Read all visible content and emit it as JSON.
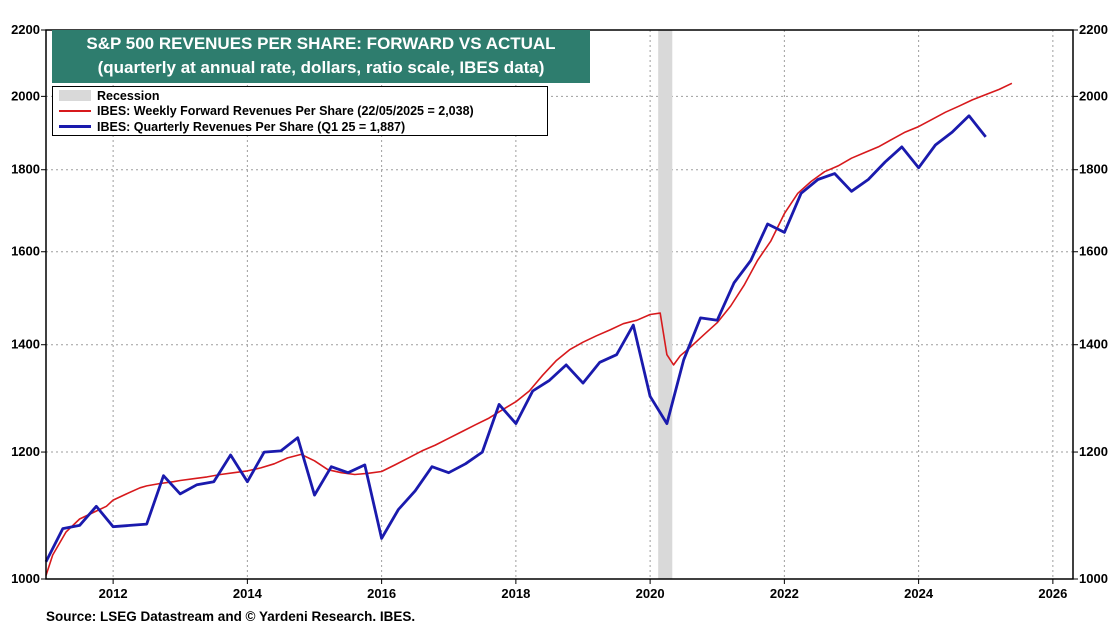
{
  "title": {
    "line1": "S&P 500 REVENUES PER SHARE: FORWARD VS ACTUAL",
    "line2": "(quarterly at annual rate, dollars, ratio scale, IBES data)"
  },
  "source": "Source: LSEG Datastream and © Yardeni Research. IBES.",
  "legend": {
    "recession": "Recession",
    "forward": "IBES: Weekly Forward Revenues Per Share (22/05/2025 = 2,038)",
    "actual": "IBES: Quarterly Revenues Per Share (Q1 25 = 1,887)"
  },
  "colors": {
    "forward": "#d7191c",
    "actual": "#1a1aad",
    "recession": "#d9d9d9",
    "title_bg": "#2e7d6e",
    "grid": "#9e9e9e"
  },
  "chart_data": {
    "type": "line",
    "title": "S&P 500 REVENUES PER SHARE: FORWARD VS ACTUAL",
    "subtitle": "(quarterly at annual rate, dollars, ratio scale, IBES data)",
    "y_scale": "log",
    "ylim": [
      1000,
      2200
    ],
    "xlim": [
      2011.0,
      2026.3
    ],
    "y_ticks": [
      1000,
      1200,
      1400,
      1600,
      1800,
      2000,
      2200
    ],
    "x_ticks": [
      2012,
      2014,
      2016,
      2018,
      2020,
      2022,
      2024,
      2026
    ],
    "grid": true,
    "legend_position": "top-left",
    "recession": [
      2020.12,
      2020.33
    ],
    "series": [
      {
        "name": "IBES: Weekly Forward Revenues Per Share (22/05/2025 = 2,038)",
        "x": [
          2011.0,
          2011.1,
          2011.3,
          2011.5,
          2011.7,
          2011.9,
          2012.0,
          2012.2,
          2012.4,
          2012.5,
          2012.7,
          2012.9,
          2013.0,
          2013.2,
          2013.4,
          2013.6,
          2013.8,
          2014.0,
          2014.2,
          2014.4,
          2014.6,
          2014.8,
          2015.0,
          2015.2,
          2015.4,
          2015.6,
          2015.8,
          2016.0,
          2016.2,
          2016.4,
          2016.6,
          2016.8,
          2017.0,
          2017.2,
          2017.4,
          2017.6,
          2017.8,
          2018.0,
          2018.2,
          2018.4,
          2018.6,
          2018.8,
          2019.0,
          2019.2,
          2019.4,
          2019.6,
          2019.8,
          2020.0,
          2020.15,
          2020.25,
          2020.35,
          2020.45,
          2020.6,
          2020.8,
          2021.0,
          2021.2,
          2021.4,
          2021.6,
          2021.8,
          2022.0,
          2022.2,
          2022.4,
          2022.6,
          2022.8,
          2023.0,
          2023.2,
          2023.4,
          2023.6,
          2023.8,
          2024.0,
          2024.2,
          2024.4,
          2024.6,
          2024.8,
          2025.0,
          2025.2,
          2025.39
        ],
        "values": [
          1005,
          1035,
          1070,
          1090,
          1100,
          1110,
          1120,
          1130,
          1140,
          1143,
          1147,
          1150,
          1152,
          1155,
          1158,
          1162,
          1165,
          1168,
          1173,
          1180,
          1190,
          1196,
          1185,
          1170,
          1165,
          1162,
          1164,
          1167,
          1178,
          1190,
          1202,
          1212,
          1224,
          1236,
          1248,
          1260,
          1275,
          1290,
          1310,
          1340,
          1368,
          1390,
          1405,
          1418,
          1430,
          1443,
          1450,
          1462,
          1465,
          1380,
          1360,
          1378,
          1395,
          1420,
          1445,
          1480,
          1525,
          1580,
          1625,
          1690,
          1740,
          1770,
          1795,
          1810,
          1830,
          1845,
          1860,
          1880,
          1900,
          1915,
          1935,
          1955,
          1972,
          1990,
          2005,
          2020,
          2038
        ]
      },
      {
        "name": "IBES: Quarterly Revenues Per Share (Q1 25 = 1,887)",
        "x": [
          2011.0,
          2011.25,
          2011.5,
          2011.75,
          2012.0,
          2012.25,
          2012.5,
          2012.75,
          2013.0,
          2013.25,
          2013.5,
          2013.75,
          2014.0,
          2014.25,
          2014.5,
          2014.75,
          2015.0,
          2015.25,
          2015.5,
          2015.75,
          2016.0,
          2016.25,
          2016.5,
          2016.75,
          2017.0,
          2017.25,
          2017.5,
          2017.75,
          2018.0,
          2018.25,
          2018.5,
          2018.75,
          2019.0,
          2019.25,
          2019.5,
          2019.75,
          2020.0,
          2020.25,
          2020.5,
          2020.75,
          2021.0,
          2021.25,
          2021.5,
          2021.75,
          2022.0,
          2022.25,
          2022.5,
          2022.75,
          2023.0,
          2023.25,
          2023.5,
          2023.75,
          2024.0,
          2024.25,
          2024.5,
          2024.75,
          2025.0
        ],
        "values": [
          1025,
          1075,
          1080,
          1110,
          1078,
          1080,
          1082,
          1160,
          1130,
          1145,
          1150,
          1195,
          1150,
          1200,
          1202,
          1225,
          1128,
          1175,
          1165,
          1178,
          1060,
          1105,
          1135,
          1175,
          1165,
          1180,
          1200,
          1285,
          1250,
          1310,
          1330,
          1360,
          1325,
          1365,
          1380,
          1440,
          1300,
          1250,
          1370,
          1455,
          1450,
          1530,
          1580,
          1665,
          1645,
          1740,
          1775,
          1790,
          1745,
          1775,
          1820,
          1860,
          1805,
          1865,
          1900,
          1945,
          1887
        ]
      }
    ]
  }
}
